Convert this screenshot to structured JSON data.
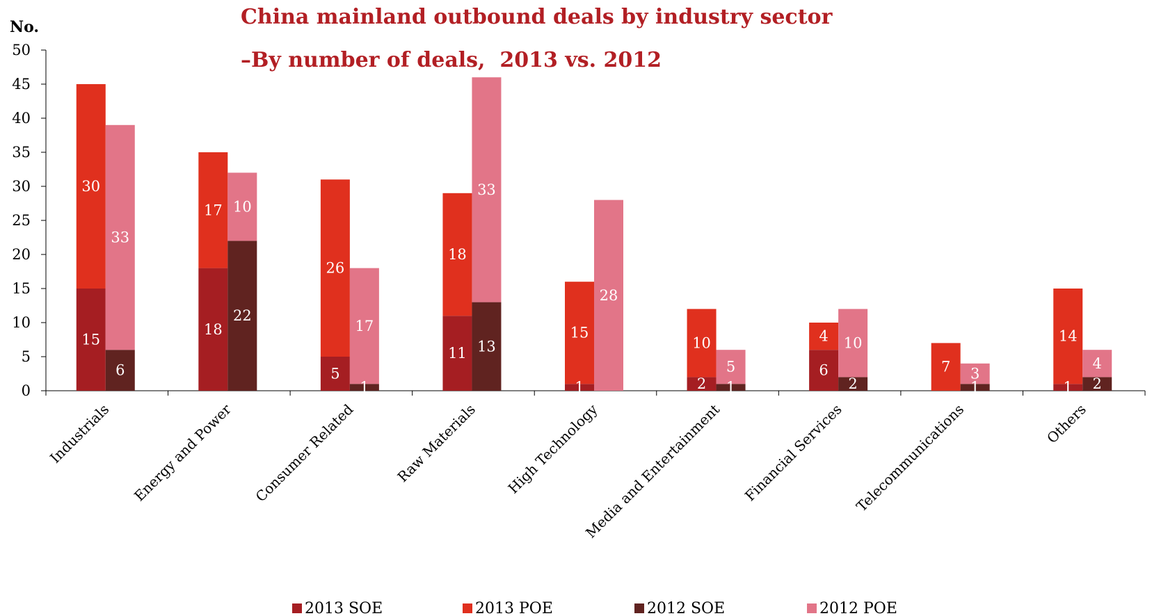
{
  "chart_data": {
    "type": "bar",
    "stacked": true,
    "title": "China mainland outbound deals by industry sector",
    "subtitle": "–By number of deals,  2013 vs. 2012",
    "ylabel": "No.",
    "ylim": [
      0,
      50
    ],
    "yticks": [
      0,
      5,
      10,
      15,
      20,
      25,
      30,
      35,
      40,
      45,
      50
    ],
    "grid": false,
    "legend_position": "bottom",
    "categories": [
      "Industrials",
      "Energy and Power",
      "Consumer Related",
      "Raw Materials",
      "High Technology",
      "Media and Entertainment",
      "Financial Services",
      "Telecommunications",
      "Others"
    ],
    "groups": [
      {
        "year": "2013",
        "stack": [
          {
            "name": "2013 SOE",
            "color": "#a51e22",
            "values": [
              15,
              18,
              5,
              11,
              1,
              2,
              6,
              0,
              1
            ]
          },
          {
            "name": "2013 POE",
            "color": "#e0301e",
            "values": [
              30,
              17,
              26,
              18,
              15,
              10,
              4,
              7,
              14
            ]
          }
        ]
      },
      {
        "year": "2012",
        "stack": [
          {
            "name": "2012 SOE",
            "color": "#602320",
            "values": [
              6,
              22,
              1,
              13,
              0,
              1,
              2,
              1,
              2
            ]
          },
          {
            "name": "2012 POE",
            "color": "#e27588",
            "values": [
              33,
              10,
              17,
              33,
              28,
              5,
              10,
              3,
              4
            ]
          }
        ]
      }
    ]
  }
}
